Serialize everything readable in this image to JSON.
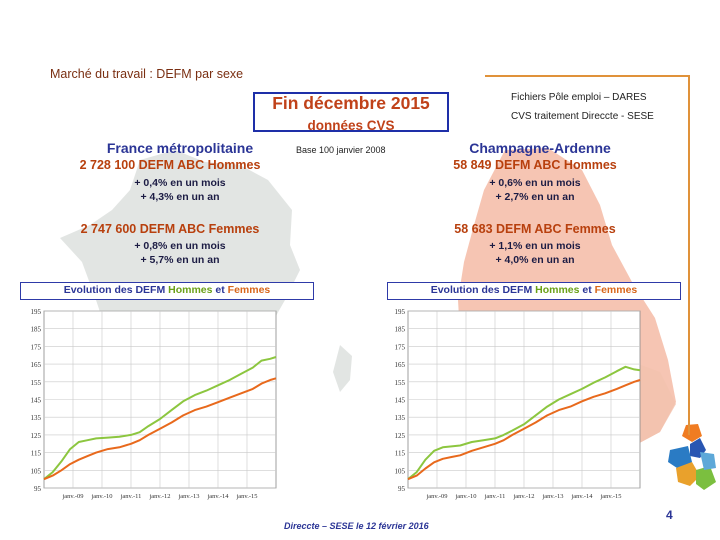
{
  "slide": {
    "title": "Marché du travail : DEFM par sexe",
    "source": "Fichiers Pôle emploi – DARES",
    "treatment": "CVS traitement Direccte - SESE",
    "period": "Fin  décembre  2015",
    "cvs_label": "données CVS",
    "base_label": "Base 100 janvier 2008",
    "footer": "Direccte – SESE le 12 février 2016",
    "page_number": "4"
  },
  "colors": {
    "men": "#8cc63f",
    "women": "#e8691c",
    "title_blue": "#2b3596",
    "accent_orange": "#e0923a"
  },
  "regions": {
    "france": {
      "name": "France métropolitaine",
      "men_total": "2 728 100  DEFM ABC Hommes",
      "men_month": "+ 0,4% en un mois",
      "men_year": "+ 4,3% en un an",
      "women_total": "2 747 600  DEFM ABC Femmes",
      "women_month": "+ 0,8% en un mois",
      "women_year": "+ 5,7% en un an",
      "evo_prefix": "Evolution des DEFM ",
      "evo_men": "Hommes",
      "evo_and": " et ",
      "evo_women": "Femmes"
    },
    "champagne": {
      "name": "Champagne-Ardenne",
      "men_total": "58 849  DEFM ABC Hommes",
      "men_month": "+ 0,6% en un mois",
      "men_year": "+ 2,7% en un an",
      "women_total": "58 683  DEFM ABC Femmes",
      "women_month": "+ 1,1% en un mois",
      "women_year": "+ 4,0% en un an",
      "evo_prefix": "Evolution des DEFM ",
      "evo_men": "Hommes",
      "evo_and": " et ",
      "evo_women": "Femmes"
    }
  },
  "chart_data": [
    {
      "type": "line",
      "title": "Evolution des DEFM Hommes et Femmes",
      "region": "France métropolitaine",
      "x_ticks": [
        "janv.-09",
        "janv.-10",
        "janv.-11",
        "janv.-12",
        "janv.-13",
        "janv.-14",
        "janv.-15"
      ],
      "y_ticks": [
        95,
        105,
        115,
        125,
        135,
        145,
        155,
        165,
        175,
        185,
        195
      ],
      "ylim": [
        95,
        195
      ],
      "xlim": [
        2008.0,
        2016.0
      ],
      "grid": true,
      "series": [
        {
          "name": "Hommes",
          "color": "#8cc63f",
          "x": [
            2008.0,
            2008.3,
            2008.6,
            2008.9,
            2009.2,
            2009.5,
            2009.8,
            2010.2,
            2010.6,
            2011.0,
            2011.3,
            2011.6,
            2012.0,
            2012.4,
            2012.8,
            2013.2,
            2013.6,
            2014.0,
            2014.4,
            2014.8,
            2015.2,
            2015.5,
            2015.8,
            2016.0
          ],
          "y": [
            100,
            104,
            110,
            117,
            121,
            122,
            123,
            123.5,
            124,
            125,
            126.5,
            130,
            134,
            139,
            144,
            147.5,
            150,
            153,
            156,
            159.5,
            163,
            167,
            168,
            169
          ]
        },
        {
          "name": "Femmes",
          "color": "#e8691c",
          "x": [
            2008.0,
            2008.3,
            2008.6,
            2008.9,
            2009.2,
            2009.5,
            2009.8,
            2010.2,
            2010.6,
            2011.0,
            2011.3,
            2011.6,
            2012.0,
            2012.4,
            2012.8,
            2013.2,
            2013.6,
            2014.0,
            2014.4,
            2014.8,
            2015.2,
            2015.5,
            2015.8,
            2016.0
          ],
          "y": [
            100,
            102,
            105,
            108.5,
            111,
            113,
            115,
            117,
            118,
            120,
            122,
            125,
            128.5,
            132,
            136,
            139,
            141,
            143.5,
            146,
            148.5,
            151,
            154,
            156,
            157
          ]
        }
      ]
    },
    {
      "type": "line",
      "title": "Evolution des DEFM Hommes et Femmes",
      "region": "Champagne-Ardenne",
      "x_ticks": [
        "janv.-09",
        "janv.-10",
        "janv.-11",
        "janv.-12",
        "janv.-13",
        "janv.-14",
        "janv.-15"
      ],
      "y_ticks": [
        95,
        105,
        115,
        125,
        135,
        145,
        155,
        165,
        175,
        185,
        195
      ],
      "ylim": [
        95,
        195
      ],
      "xlim": [
        2008.0,
        2016.0
      ],
      "grid": true,
      "series": [
        {
          "name": "Hommes",
          "color": "#8cc63f",
          "x": [
            2008.0,
            2008.3,
            2008.6,
            2008.9,
            2009.2,
            2009.5,
            2009.8,
            2010.2,
            2010.6,
            2011.0,
            2011.3,
            2011.6,
            2012.0,
            2012.4,
            2012.8,
            2013.2,
            2013.6,
            2014.0,
            2014.4,
            2014.8,
            2015.2,
            2015.5,
            2015.8,
            2016.0
          ],
          "y": [
            100,
            104,
            111,
            116,
            118,
            118.5,
            119,
            121,
            122,
            123,
            125,
            127.5,
            131,
            136,
            141,
            145,
            148,
            151,
            154.5,
            157.5,
            161,
            163.5,
            162,
            161.5
          ]
        },
        {
          "name": "Femmes",
          "color": "#e8691c",
          "x": [
            2008.0,
            2008.3,
            2008.6,
            2008.9,
            2009.2,
            2009.5,
            2009.8,
            2010.2,
            2010.6,
            2011.0,
            2011.3,
            2011.6,
            2012.0,
            2012.4,
            2012.8,
            2013.2,
            2013.6,
            2014.0,
            2014.4,
            2014.8,
            2015.2,
            2015.5,
            2015.8,
            2016.0
          ],
          "y": [
            100,
            102,
            106,
            109.5,
            111.5,
            112.5,
            113.5,
            116,
            118,
            120,
            122,
            125,
            128.5,
            132,
            136,
            139,
            141,
            144,
            146.5,
            148.5,
            151,
            153,
            155,
            156
          ]
        }
      ]
    }
  ]
}
